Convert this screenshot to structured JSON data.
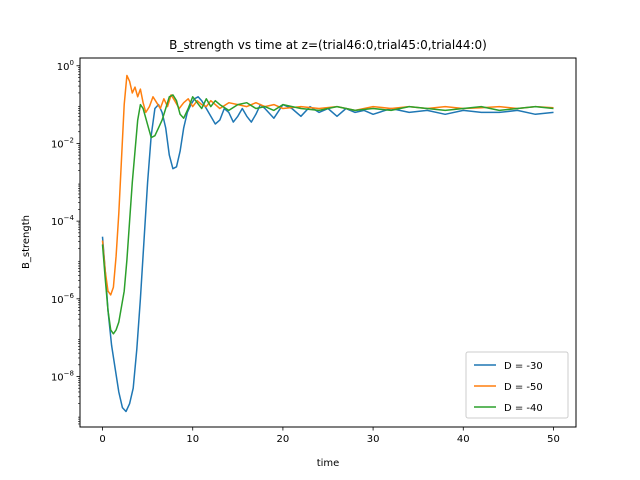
{
  "chart_data": {
    "type": "line",
    "title": "B_strength vs time at z=(trial46:0,trial45:0,trial44:0)",
    "xlabel": "time",
    "ylabel": "B_strength",
    "xlim": [
      -2.5,
      52.5
    ],
    "ylim_log10": [
      -9.3,
      0.2
    ],
    "yscale": "log",
    "grid": false,
    "legend_position": "lower-right",
    "x_ticks": [
      0,
      10,
      20,
      30,
      40,
      50
    ],
    "y_ticks_exp": [
      -8,
      -6,
      -4,
      -2,
      0
    ],
    "series": [
      {
        "name": "D = -30",
        "color": "#1f77b4",
        "x": [
          0,
          0.3,
          0.6,
          1.0,
          1.4,
          1.8,
          2.2,
          2.6,
          3.0,
          3.4,
          3.8,
          4.2,
          4.6,
          5.0,
          5.4,
          5.8,
          6.2,
          6.6,
          7.0,
          7.4,
          7.8,
          8.2,
          8.6,
          9.0,
          9.4,
          9.8,
          10.2,
          10.6,
          11.0,
          11.5,
          12.0,
          12.5,
          13.0,
          13.5,
          14.0,
          14.5,
          15.0,
          15.5,
          16.0,
          16.5,
          17.0,
          17.5,
          18.0,
          19,
          20,
          21,
          22,
          23,
          24,
          25,
          26,
          27,
          28,
          29,
          30,
          32,
          34,
          36,
          38,
          40,
          42,
          44,
          46,
          48,
          50
        ],
        "y_log10": [
          -4.4,
          -5.3,
          -6.3,
          -7.2,
          -7.8,
          -8.4,
          -8.8,
          -8.9,
          -8.7,
          -8.3,
          -7.3,
          -6.0,
          -4.5,
          -3.0,
          -1.8,
          -1.1,
          -1.0,
          -1.2,
          -1.6,
          -2.3,
          -2.65,
          -2.6,
          -2.2,
          -1.6,
          -1.2,
          -1.0,
          -0.85,
          -0.8,
          -0.9,
          -1.1,
          -1.3,
          -1.5,
          -1.4,
          -1.1,
          -1.2,
          -1.45,
          -1.3,
          -1.1,
          -1.3,
          -1.45,
          -1.25,
          -1.0,
          -1.1,
          -1.35,
          -1.0,
          -1.1,
          -1.3,
          -1.05,
          -1.2,
          -1.1,
          -1.3,
          -1.1,
          -1.2,
          -1.15,
          -1.25,
          -1.1,
          -1.2,
          -1.15,
          -1.25,
          -1.15,
          -1.2,
          -1.2,
          -1.15,
          -1.25,
          -1.2
        ]
      },
      {
        "name": "D = -50",
        "color": "#ff7f0e",
        "x": [
          0,
          0.3,
          0.6,
          0.9,
          1.2,
          1.5,
          1.8,
          2.1,
          2.4,
          2.7,
          3.0,
          3.3,
          3.6,
          3.9,
          4.2,
          4.5,
          4.8,
          5.2,
          5.6,
          6.0,
          6.4,
          6.8,
          7.2,
          7.6,
          8.0,
          8.5,
          9.0,
          9.5,
          10.0,
          10.5,
          11.0,
          11.5,
          12.0,
          12.5,
          13.0,
          14,
          15,
          16,
          17,
          18,
          19,
          20,
          22,
          24,
          26,
          28,
          30,
          32,
          34,
          36,
          38,
          40,
          42,
          44,
          46,
          48,
          50
        ],
        "y_log10": [
          -4.5,
          -5.3,
          -5.8,
          -5.9,
          -5.7,
          -4.9,
          -3.8,
          -2.4,
          -1.0,
          -0.25,
          -0.4,
          -0.7,
          -0.55,
          -0.8,
          -0.6,
          -0.95,
          -1.2,
          -1.05,
          -0.8,
          -0.95,
          -1.1,
          -0.85,
          -1.05,
          -0.75,
          -0.9,
          -1.1,
          -0.95,
          -0.85,
          -1.05,
          -0.9,
          -1.0,
          -1.05,
          -0.9,
          -1.0,
          -1.1,
          -0.95,
          -1.0,
          -1.05,
          -0.95,
          -1.05,
          -1.0,
          -1.1,
          -1.05,
          -1.1,
          -1.05,
          -1.15,
          -1.05,
          -1.1,
          -1.05,
          -1.1,
          -1.05,
          -1.1,
          -1.08,
          -1.05,
          -1.1,
          -1.05,
          -1.08
        ]
      },
      {
        "name": "D = -40",
        "color": "#2ca02c",
        "x": [
          0,
          0.3,
          0.6,
          0.9,
          1.2,
          1.5,
          1.8,
          2.1,
          2.4,
          2.7,
          3.0,
          3.3,
          3.6,
          3.9,
          4.2,
          4.5,
          4.8,
          5.1,
          5.4,
          5.8,
          6.2,
          6.6,
          7.0,
          7.4,
          7.8,
          8.2,
          8.6,
          9.0,
          9.5,
          10.0,
          10.5,
          11.0,
          11.5,
          12.0,
          12.5,
          13.0,
          14,
          15,
          16,
          17,
          18,
          19,
          20,
          22,
          24,
          26,
          28,
          30,
          32,
          34,
          36,
          38,
          40,
          42,
          44,
          46,
          48,
          50
        ],
        "y_log10": [
          -4.6,
          -5.5,
          -6.3,
          -6.8,
          -6.9,
          -6.8,
          -6.6,
          -6.2,
          -5.8,
          -5.0,
          -4.0,
          -3.0,
          -2.2,
          -1.4,
          -1.0,
          -1.1,
          -1.35,
          -1.6,
          -1.85,
          -1.8,
          -1.6,
          -1.4,
          -1.1,
          -0.8,
          -0.75,
          -0.9,
          -1.25,
          -1.35,
          -1.1,
          -0.8,
          -0.95,
          -1.1,
          -0.85,
          -1.05,
          -0.9,
          -1.0,
          -1.15,
          -1.0,
          -0.95,
          -1.1,
          -1.05,
          -1.15,
          -1.0,
          -1.1,
          -1.15,
          -1.05,
          -1.15,
          -1.1,
          -1.15,
          -1.05,
          -1.1,
          -1.15,
          -1.1,
          -1.05,
          -1.15,
          -1.1,
          -1.05,
          -1.1
        ]
      }
    ]
  }
}
